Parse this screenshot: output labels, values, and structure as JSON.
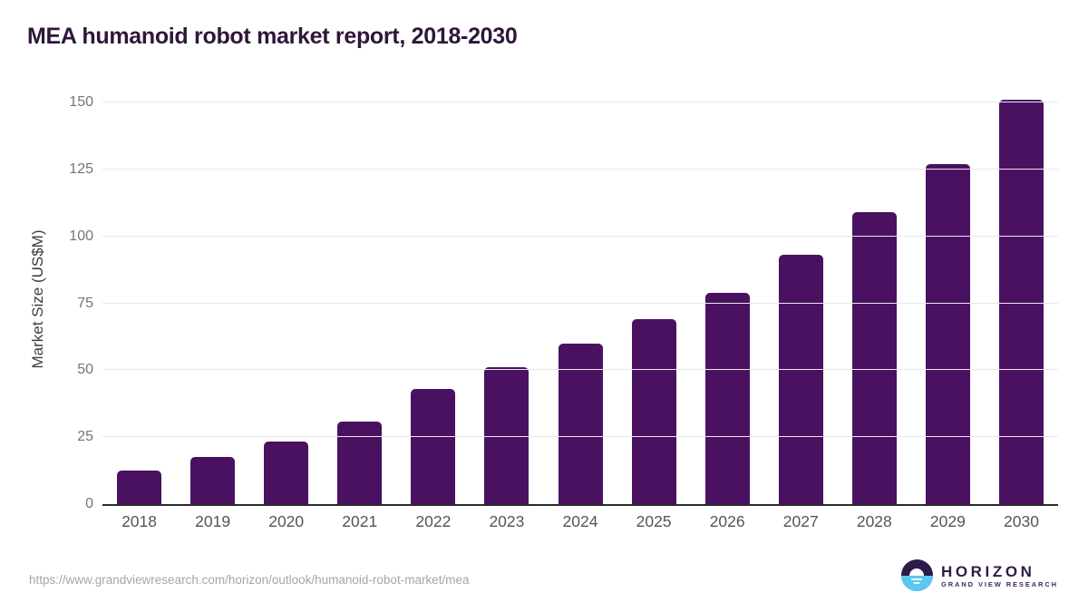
{
  "header": {
    "title": "MEA humanoid robot market report, 2018-2030"
  },
  "chart_data": {
    "type": "bar",
    "title": "MEA humanoid robot market report, 2018-2030",
    "categories": [
      "2018",
      "2019",
      "2020",
      "2021",
      "2022",
      "2023",
      "2024",
      "2025",
      "2026",
      "2027",
      "2028",
      "2029",
      "2030"
    ],
    "values": [
      12.5,
      17.5,
      23.5,
      31,
      43,
      51,
      60,
      69,
      79,
      93,
      109,
      127,
      151
    ],
    "xlabel": "",
    "ylabel": "Market Size (US$M)",
    "ylim": [
      0,
      150
    ],
    "yticks": [
      0,
      25,
      50,
      75,
      100,
      125,
      150
    ],
    "grid": true,
    "legend": false,
    "bar_color": "#4a1161"
  },
  "colors": {
    "bar": "#4a1161",
    "title_text": "#2f1639",
    "axis_line": "#2b2b2b",
    "gridline": "#e8e8e8",
    "y_tick_label": "#757575",
    "x_tick_label": "#555555",
    "url_text": "#a6a6a6",
    "logo_purple": "#2e1a47",
    "logo_blue": "#5ac8f3"
  },
  "footer": {
    "source_url": "https://www.grandviewresearch.com/horizon/outlook/humanoid-robot-market/mea",
    "logo": {
      "brand": "HORIZON",
      "sub_brand": "GRAND VIEW RESEARCH",
      "icon": "horizon-sun-icon"
    }
  }
}
